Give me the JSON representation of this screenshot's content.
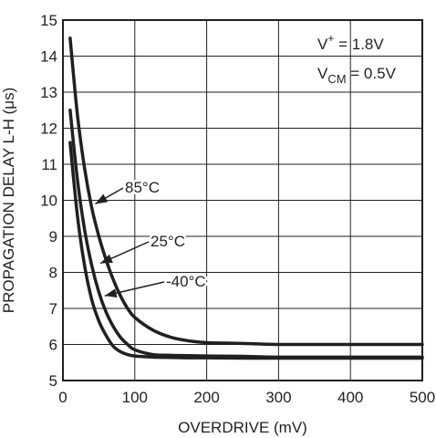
{
  "chart_data": {
    "type": "line",
    "xlabel": "OVERDRIVE (mV)",
    "ylabel": "PROPAGATION DELAY L-H (μs)",
    "xlim": [
      0,
      500
    ],
    "ylim": [
      5,
      15
    ],
    "xticks": [
      0,
      100,
      200,
      300,
      400,
      500
    ],
    "yticks": [
      5,
      6,
      7,
      8,
      9,
      10,
      11,
      12,
      13,
      14,
      15
    ],
    "grid": true,
    "conditions": {
      "supply": {
        "main": "V",
        "sup": "+",
        "rest": " = 1.8V"
      },
      "vcm": {
        "main": "V",
        "sub": "CM",
        "rest": " = 0.5V"
      }
    },
    "series": [
      {
        "name": "85°C",
        "x": [
          10,
          20,
          30,
          40,
          50,
          60,
          70,
          80,
          90,
          100,
          125,
          150,
          175,
          200,
          250,
          300,
          400,
          500
        ],
        "y": [
          14.5,
          12.4,
          10.9,
          9.8,
          9.0,
          8.35,
          7.8,
          7.35,
          7.0,
          6.75,
          6.4,
          6.2,
          6.1,
          6.05,
          6.03,
          6.0,
          6.0,
          6.0
        ]
      },
      {
        "name": "25°C",
        "x": [
          10,
          20,
          30,
          40,
          50,
          60,
          70,
          80,
          90,
          100,
          125,
          150,
          175,
          200,
          250,
          300,
          400,
          500
        ],
        "y": [
          12.5,
          10.6,
          9.2,
          8.2,
          7.45,
          6.9,
          6.5,
          6.2,
          6.0,
          5.85,
          5.72,
          5.7,
          5.69,
          5.68,
          5.67,
          5.65,
          5.65,
          5.65
        ]
      },
      {
        "name": "-40°C",
        "x": [
          10,
          20,
          30,
          40,
          50,
          60,
          70,
          80,
          90,
          100,
          125,
          150,
          175,
          200,
          250,
          300,
          400,
          500
        ],
        "y": [
          11.6,
          9.6,
          8.2,
          7.25,
          6.65,
          6.25,
          5.95,
          5.8,
          5.72,
          5.68,
          5.65,
          5.64,
          5.63,
          5.63,
          5.62,
          5.62,
          5.62,
          5.62
        ]
      }
    ],
    "annotations": [
      {
        "text": "85°C",
        "series": "85°C",
        "point_x": 45,
        "point_y": 9.9
      },
      {
        "text": "25°C",
        "series": "25°C",
        "point_x": 52,
        "point_y": 8.25
      },
      {
        "text": "-40°C",
        "series": "-40°C",
        "point_x": 58,
        "point_y": 7.35
      }
    ]
  }
}
